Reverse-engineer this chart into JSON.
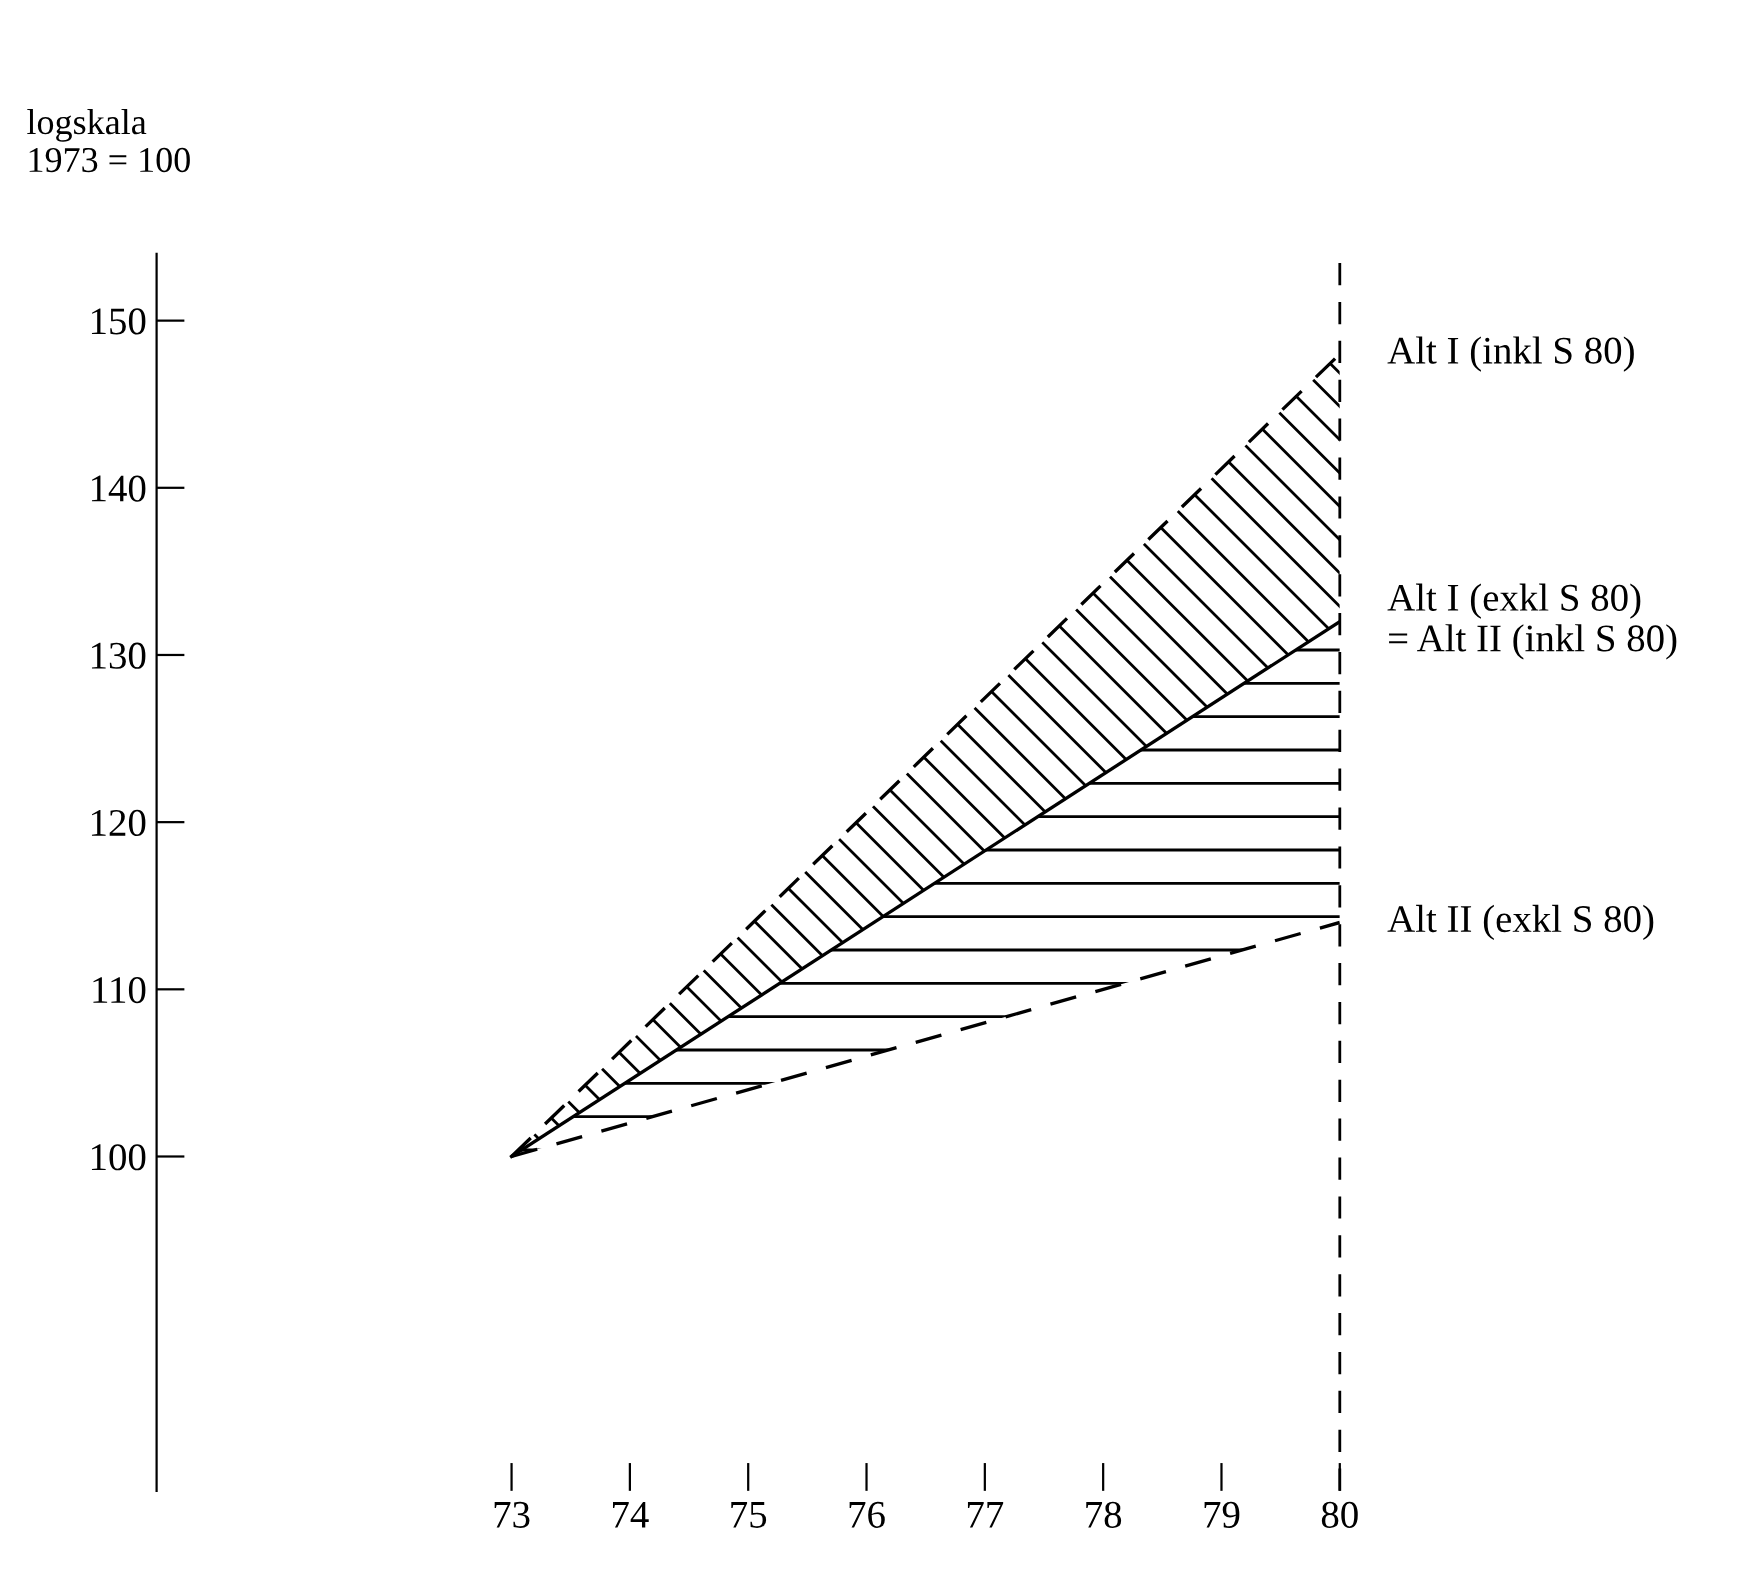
{
  "chart_data": {
    "type": "line",
    "ylabel": "logskala\n1973 = 100",
    "x": [
      73,
      80
    ],
    "series": [
      {
        "name": "Alt I (inkl S 80)",
        "color": "#000000",
        "values": [
          100,
          148
        ],
        "line_style": "dashed"
      },
      {
        "name": "Alt I (exkl S 80)\n= Alt II (inkl S 80)",
        "color": "#000000",
        "values": [
          100,
          132
        ],
        "line_style": "solid"
      },
      {
        "name": "Alt II (exkl S 80)",
        "color": "#000000",
        "values": [
          100,
          114
        ],
        "line_style": "dashed"
      }
    ],
    "xlim": [
      70,
      80
    ],
    "xticks": [
      73,
      74,
      75,
      76,
      77,
      78,
      79,
      80
    ],
    "ylim": [
      80,
      154
    ],
    "yticks": [
      100,
      110,
      120,
      130,
      140,
      150
    ],
    "ref_lines": [
      {
        "axis": "x",
        "value": 80,
        "line_style": "dashed"
      }
    ],
    "grid": false,
    "legend": false,
    "marker": "none"
  }
}
